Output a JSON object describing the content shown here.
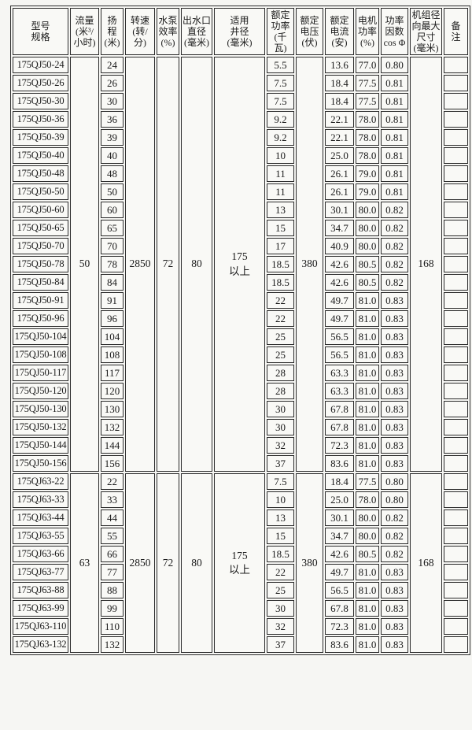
{
  "document": {
    "type": "scanned-specification-table",
    "language": "zh-CN",
    "subject": "175QJ deep-well submersible pump specifications"
  },
  "colors": {
    "page_background": "#f6f6f3",
    "cell_background": "#f9f9f6",
    "border": "#2c2c2c",
    "text": "#1a1a1a"
  },
  "table": {
    "headers": [
      "型号\n规格",
      "流量\n(米³/\n小时)",
      "扬\n程\n(米)",
      "转速\n(转/\n分)",
      "水泵\n效率\n(%)",
      "出水口\n直径\n(毫米)",
      "适用\n井径\n(毫米)",
      "额定\n功率\n(千\n瓦)",
      "额定\n电压\n(伏)",
      "额定\n电流\n(安)",
      "电机\n功率\n(%)",
      "功率\n因数\ncos Φ",
      "机组径\n向最大\n尺寸\n(毫米)",
      "备\n注"
    ],
    "sections": [
      {
        "flow": "50",
        "speed": "2850",
        "pump_efficiency": "72",
        "outlet_diameter": "80",
        "well_diameter": "175\n以上",
        "voltage": "380",
        "max_unit_diameter": "168",
        "rows": [
          {
            "model": "175QJ50-24",
            "head": "24",
            "power": "5.5",
            "current": "13.6",
            "motor_efficiency": "77.0",
            "power_factor": "0.80",
            "remark": ""
          },
          {
            "model": "175QJ50-26",
            "head": "26",
            "power": "7.5",
            "current": "18.4",
            "motor_efficiency": "77.5",
            "power_factor": "0.81",
            "remark": ""
          },
          {
            "model": "175QJ50-30",
            "head": "30",
            "power": "7.5",
            "current": "18.4",
            "motor_efficiency": "77.5",
            "power_factor": "0.81",
            "remark": ""
          },
          {
            "model": "175QJ50-36",
            "head": "36",
            "power": "9.2",
            "current": "22.1",
            "motor_efficiency": "78.0",
            "power_factor": "0.81",
            "remark": ""
          },
          {
            "model": "175QJ50-39",
            "head": "39",
            "power": "9.2",
            "current": "22.1",
            "motor_efficiency": "78.0",
            "power_factor": "0.81",
            "remark": ""
          },
          {
            "model": "175QJ50-40",
            "head": "40",
            "power": "10",
            "current": "25.0",
            "motor_efficiency": "78.0",
            "power_factor": "0.81",
            "remark": ""
          },
          {
            "model": "175QJ50-48",
            "head": "48",
            "power": "11",
            "current": "26.1",
            "motor_efficiency": "79.0",
            "power_factor": "0.81",
            "remark": ""
          },
          {
            "model": "175QJ50-50",
            "head": "50",
            "power": "11",
            "current": "26.1",
            "motor_efficiency": "79.0",
            "power_factor": "0.81",
            "remark": ""
          },
          {
            "model": "175QJ50-60",
            "head": "60",
            "power": "13",
            "current": "30.1",
            "motor_efficiency": "80.0",
            "power_factor": "0.82",
            "remark": ""
          },
          {
            "model": "175QJ50-65",
            "head": "65",
            "power": "15",
            "current": "34.7",
            "motor_efficiency": "80.0",
            "power_factor": "0.82",
            "remark": ""
          },
          {
            "model": "175QJ50-70",
            "head": "70",
            "power": "17",
            "current": "40.9",
            "motor_efficiency": "80.0",
            "power_factor": "0.82",
            "remark": ""
          },
          {
            "model": "175QJ50-78",
            "head": "78",
            "power": "18.5",
            "current": "42.6",
            "motor_efficiency": "80.5",
            "power_factor": "0.82",
            "remark": ""
          },
          {
            "model": "175QJ50-84",
            "head": "84",
            "power": "18.5",
            "current": "42.6",
            "motor_efficiency": "80.5",
            "power_factor": "0.82",
            "remark": ""
          },
          {
            "model": "175QJ50-91",
            "head": "91",
            "power": "22",
            "current": "49.7",
            "motor_efficiency": "81.0",
            "power_factor": "0.83",
            "remark": ""
          },
          {
            "model": "175QJ50-96",
            "head": "96",
            "power": "22",
            "current": "49.7",
            "motor_efficiency": "81.0",
            "power_factor": "0.83",
            "remark": ""
          },
          {
            "model": "175QJ50-104",
            "head": "104",
            "power": "25",
            "current": "56.5",
            "motor_efficiency": "81.0",
            "power_factor": "0.83",
            "remark": ""
          },
          {
            "model": "175QJ50-108",
            "head": "108",
            "power": "25",
            "current": "56.5",
            "motor_efficiency": "81.0",
            "power_factor": "0.83",
            "remark": ""
          },
          {
            "model": "175QJ50-117",
            "head": "117",
            "power": "28",
            "current": "63.3",
            "motor_efficiency": "81.0",
            "power_factor": "0.83",
            "remark": ""
          },
          {
            "model": "175QJ50-120",
            "head": "120",
            "power": "28",
            "current": "63.3",
            "motor_efficiency": "81.0",
            "power_factor": "0.83",
            "remark": ""
          },
          {
            "model": "175QJ50-130",
            "head": "130",
            "power": "30",
            "current": "67.8",
            "motor_efficiency": "81.0",
            "power_factor": "0.83",
            "remark": ""
          },
          {
            "model": "175QJ50-132",
            "head": "132",
            "power": "30",
            "current": "67.8",
            "motor_efficiency": "81.0",
            "power_factor": "0.83",
            "remark": ""
          },
          {
            "model": "175QJ50-144",
            "head": "144",
            "power": "32",
            "current": "72.3",
            "motor_efficiency": "81.0",
            "power_factor": "0.83",
            "remark": ""
          },
          {
            "model": "175QJ50-156",
            "head": "156",
            "power": "37",
            "current": "83.6",
            "motor_efficiency": "81.0",
            "power_factor": "0.83",
            "remark": ""
          }
        ]
      },
      {
        "flow": "63",
        "speed": "2850",
        "pump_efficiency": "72",
        "outlet_diameter": "80",
        "well_diameter": "175\n以上",
        "voltage": "380",
        "max_unit_diameter": "168",
        "rows": [
          {
            "model": "175QJ63-22",
            "head": "22",
            "power": "7.5",
            "current": "18.4",
            "motor_efficiency": "77.5",
            "power_factor": "0.80",
            "remark": ""
          },
          {
            "model": "175QJ63-33",
            "head": "33",
            "power": "10",
            "current": "25.0",
            "motor_efficiency": "78.0",
            "power_factor": "0.80",
            "remark": ""
          },
          {
            "model": "175QJ63-44",
            "head": "44",
            "power": "13",
            "current": "30.1",
            "motor_efficiency": "80.0",
            "power_factor": "0.82",
            "remark": ""
          },
          {
            "model": "175QJ63-55",
            "head": "55",
            "power": "15",
            "current": "34.7",
            "motor_efficiency": "80.0",
            "power_factor": "0.82",
            "remark": ""
          },
          {
            "model": "175QJ63-66",
            "head": "66",
            "power": "18.5",
            "current": "42.6",
            "motor_efficiency": "80.5",
            "power_factor": "0.82",
            "remark": ""
          },
          {
            "model": "175QJ63-77",
            "head": "77",
            "power": "22",
            "current": "49.7",
            "motor_efficiency": "81.0",
            "power_factor": "0.83",
            "remark": ""
          },
          {
            "model": "175QJ63-88",
            "head": "88",
            "power": "25",
            "current": "56.5",
            "motor_efficiency": "81.0",
            "power_factor": "0.83",
            "remark": ""
          },
          {
            "model": "175QJ63-99",
            "head": "99",
            "power": "30",
            "current": "67.8",
            "motor_efficiency": "81.0",
            "power_factor": "0.83",
            "remark": ""
          },
          {
            "model": "175QJ63-110",
            "head": "110",
            "power": "32",
            "current": "72.3",
            "motor_efficiency": "81.0",
            "power_factor": "0.83",
            "remark": ""
          },
          {
            "model": "175QJ63-132",
            "head": "132",
            "power": "37",
            "current": "83.6",
            "motor_efficiency": "81.0",
            "power_factor": "0.83",
            "remark": ""
          }
        ]
      }
    ]
  }
}
